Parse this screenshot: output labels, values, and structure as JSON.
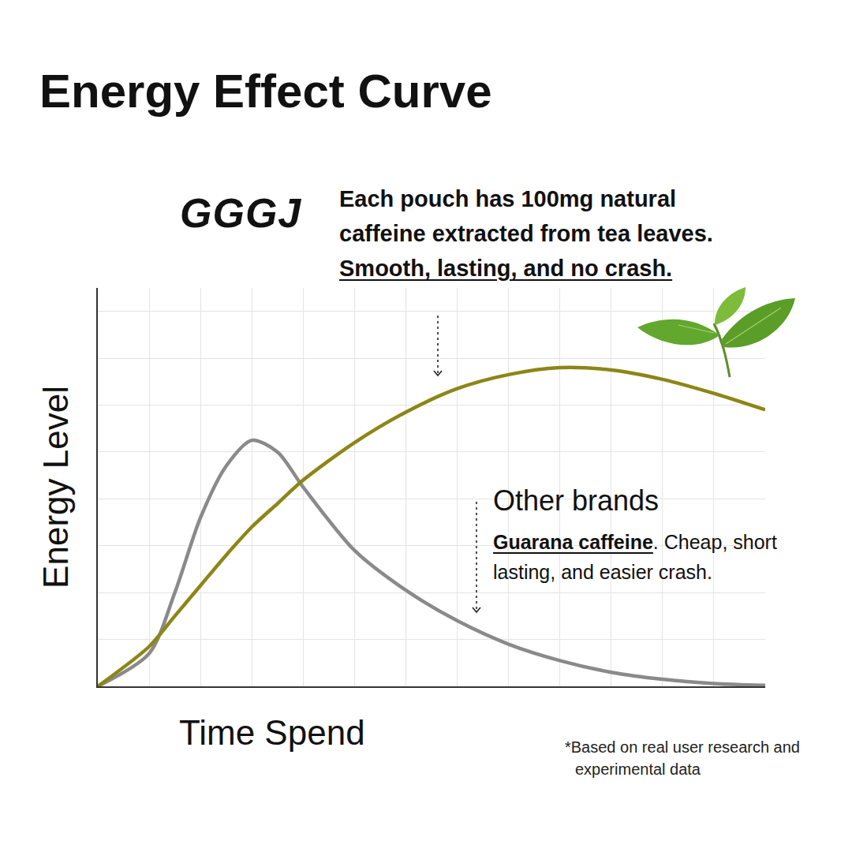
{
  "chart_data": {
    "type": "line",
    "title": "Energy Effect Curve",
    "x_label": "Time Spend",
    "y_label": "Energy Level",
    "x": [
      0,
      1,
      1.5,
      2,
      2.5,
      3,
      3.5,
      4,
      5,
      6,
      7,
      8,
      9,
      10,
      11,
      12,
      13
    ],
    "series": [
      {
        "name": "GGGJ",
        "color": "#8c8616",
        "values": [
          0,
          0.85,
          1.5,
          2.15,
          2.8,
          3.4,
          3.9,
          4.4,
          5.2,
          5.85,
          6.35,
          6.65,
          6.8,
          6.75,
          6.55,
          6.25,
          5.9
        ]
      },
      {
        "name": "Other brands",
        "color": "#8a8a8a",
        "values": [
          0,
          0.7,
          2.0,
          3.6,
          4.7,
          5.25,
          5.0,
          4.25,
          2.9,
          2.05,
          1.4,
          0.9,
          0.55,
          0.3,
          0.15,
          0.06,
          0.02
        ]
      }
    ],
    "xlim": [
      0,
      13
    ],
    "ylim": [
      0,
      8.5
    ],
    "xticks": [
      0,
      1,
      2,
      3,
      4,
      5,
      6,
      7,
      8,
      9,
      10,
      11,
      12,
      13
    ],
    "yticks": [
      0,
      1,
      2,
      3,
      4,
      5,
      6,
      7,
      8
    ],
    "grid": true,
    "tick_labels": false,
    "brand_note": {
      "lines": [
        "Each pouch has 100mg natural",
        "caffeine extracted from tea leaves.",
        "Smooth, lasting, and no crash."
      ],
      "underline": "Smooth, lasting, and no crash."
    },
    "other_note": {
      "lines": [
        "Guarana caffeine. Cheap, short",
        "lasting, and easier crash."
      ],
      "underline": "Guarana caffeine"
    },
    "footnote": {
      "lines": [
        "*Based on real user research and",
        "experimental data"
      ]
    }
  }
}
